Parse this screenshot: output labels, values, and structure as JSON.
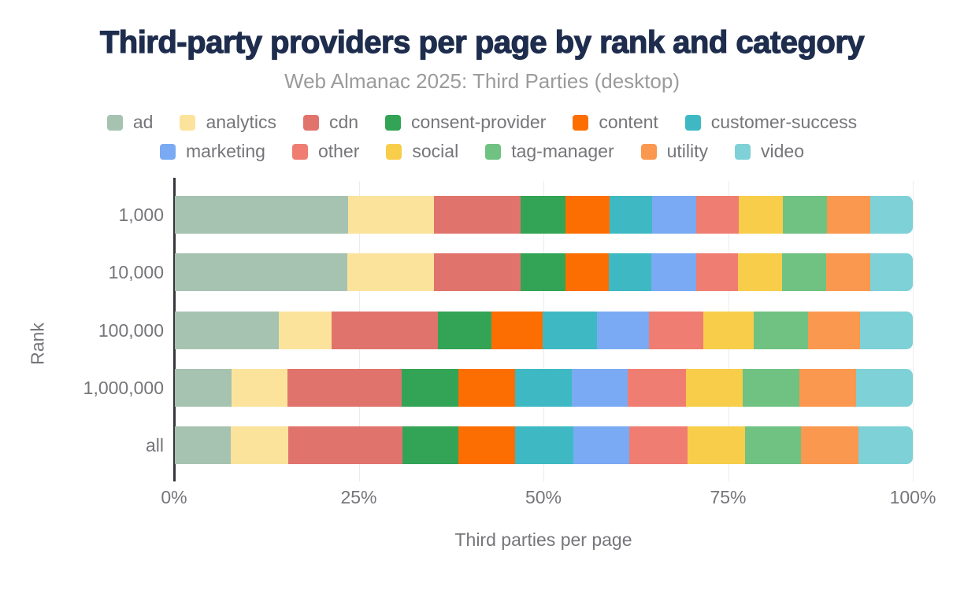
{
  "title": "Third-party providers per page by rank and category",
  "subtitle": "Web Almanac 2025: Third Parties (desktop)",
  "colors": {
    "title_text": "#1e2d4d",
    "muted_text": "#75757a",
    "subtitle_text": "#9b9b9b",
    "axis_line": "#37363b",
    "gridline": "#ececec",
    "background": "#ffffff"
  },
  "chart_data": {
    "type": "bar",
    "orientation": "horizontal",
    "stacked": true,
    "unit": "percent",
    "title": "Third-party providers per page by rank and category",
    "subtitle": "Web Almanac 2025: Third Parties (desktop)",
    "xlabel": "Third parties per page",
    "ylabel": "Rank",
    "xlim": [
      0,
      100
    ],
    "x_tick_labels": [
      "0%",
      "25%",
      "50%",
      "75%",
      "100%"
    ],
    "x_tick_values": [
      0,
      25,
      50,
      75,
      100
    ],
    "grid": true,
    "legend_position": "top",
    "categories": [
      "1,000",
      "10,000",
      "100,000",
      "1,000,000",
      "all"
    ],
    "series": [
      {
        "name": "ad",
        "color": "#a6c3b1",
        "values": [
          23.5,
          23.4,
          14.1,
          7.7,
          7.6
        ]
      },
      {
        "name": "analytics",
        "color": "#fce39c",
        "values": [
          11.6,
          11.7,
          7.1,
          7.6,
          7.7
        ]
      },
      {
        "name": "cdn",
        "color": "#e0746c",
        "values": [
          11.8,
          11.8,
          14.4,
          15.5,
          15.5
        ]
      },
      {
        "name": "consent-provider",
        "color": "#33a455",
        "values": [
          6.0,
          6.0,
          7.3,
          7.7,
          7.6
        ]
      },
      {
        "name": "content",
        "color": "#fd6e02",
        "values": [
          6.0,
          5.9,
          6.9,
          7.7,
          7.7
        ]
      },
      {
        "name": "customer-success",
        "color": "#3eb9c3",
        "values": [
          5.8,
          5.8,
          7.4,
          7.8,
          7.8
        ]
      },
      {
        "name": "marketing",
        "color": "#7aaaf3",
        "values": [
          6.0,
          6.0,
          7.1,
          7.6,
          7.6
        ]
      },
      {
        "name": "other",
        "color": "#f07d72",
        "values": [
          5.7,
          5.7,
          7.3,
          7.9,
          7.9
        ]
      },
      {
        "name": "social",
        "color": "#f8cd4a",
        "values": [
          6.0,
          6.0,
          6.9,
          7.7,
          7.8
        ]
      },
      {
        "name": "tag-manager",
        "color": "#6fc282",
        "values": [
          6.0,
          6.0,
          7.3,
          7.7,
          7.6
        ]
      },
      {
        "name": "utility",
        "color": "#fb984f",
        "values": [
          5.8,
          5.9,
          7.1,
          7.7,
          7.7
        ]
      },
      {
        "name": "video",
        "color": "#7ed1d6",
        "values": [
          5.8,
          5.8,
          7.1,
          7.7,
          7.4
        ]
      }
    ],
    "legend_rows": [
      [
        "ad",
        "analytics",
        "cdn",
        "consent-provider",
        "content",
        "customer-success"
      ],
      [
        "marketing",
        "other",
        "social",
        "tag-manager",
        "utility",
        "video"
      ]
    ]
  }
}
